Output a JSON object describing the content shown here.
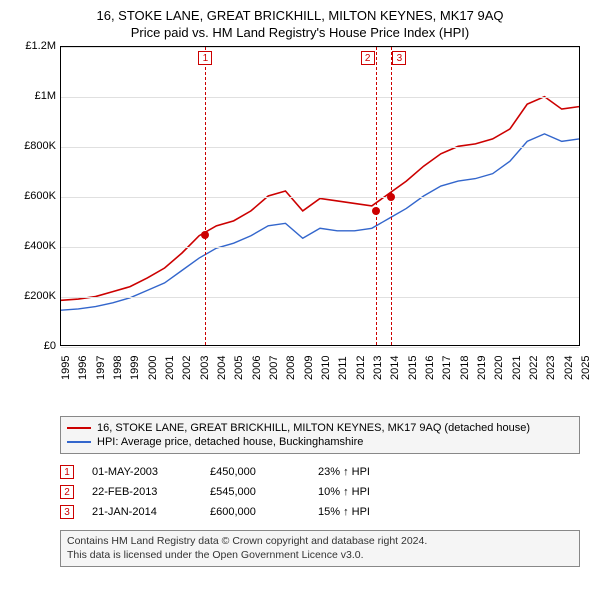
{
  "title": {
    "line1": "16, STOKE LANE, GREAT BRICKHILL, MILTON KEYNES, MK17 9AQ",
    "line2": "Price paid vs. HM Land Registry's House Price Index (HPI)"
  },
  "chart": {
    "type": "line",
    "background_color": "#ffffff",
    "grid_color": "#e0e0e0",
    "axis_color": "#000000",
    "x": {
      "min": 1995,
      "max": 2025,
      "ticks": [
        1995,
        1996,
        1997,
        1998,
        1999,
        2000,
        2001,
        2002,
        2003,
        2004,
        2005,
        2006,
        2007,
        2008,
        2009,
        2010,
        2011,
        2012,
        2013,
        2014,
        2015,
        2016,
        2017,
        2018,
        2019,
        2020,
        2021,
        2022,
        2023,
        2024,
        2025
      ],
      "tick_fontsize": 11,
      "tick_rotation": -90
    },
    "y": {
      "min": 0,
      "max": 1200000,
      "ticks": [
        0,
        200000,
        400000,
        600000,
        800000,
        1000000,
        1200000
      ],
      "tick_labels": [
        "£0",
        "£200K",
        "£400K",
        "£600K",
        "£800K",
        "£1M",
        "£1.2M"
      ],
      "tick_fontsize": 11
    },
    "series": [
      {
        "name": "property",
        "label": "16, STOKE LANE, GREAT BRICKHILL, MILTON KEYNES, MK17 9AQ (detached house)",
        "color": "#cc0000",
        "line_width": 1.6,
        "data": [
          [
            1995,
            180000
          ],
          [
            1996,
            185000
          ],
          [
            1997,
            195000
          ],
          [
            1998,
            215000
          ],
          [
            1999,
            235000
          ],
          [
            2000,
            270000
          ],
          [
            2001,
            310000
          ],
          [
            2002,
            370000
          ],
          [
            2003,
            440000
          ],
          [
            2004,
            480000
          ],
          [
            2005,
            500000
          ],
          [
            2006,
            540000
          ],
          [
            2007,
            600000
          ],
          [
            2008,
            620000
          ],
          [
            2009,
            540000
          ],
          [
            2010,
            590000
          ],
          [
            2011,
            580000
          ],
          [
            2012,
            570000
          ],
          [
            2013,
            560000
          ],
          [
            2014,
            610000
          ],
          [
            2015,
            660000
          ],
          [
            2016,
            720000
          ],
          [
            2017,
            770000
          ],
          [
            2018,
            800000
          ],
          [
            2019,
            810000
          ],
          [
            2020,
            830000
          ],
          [
            2021,
            870000
          ],
          [
            2022,
            970000
          ],
          [
            2023,
            1000000
          ],
          [
            2024,
            950000
          ],
          [
            2025,
            960000
          ]
        ]
      },
      {
        "name": "hpi",
        "label": "HPI: Average price, detached house, Buckinghamshire",
        "color": "#3366cc",
        "line_width": 1.4,
        "data": [
          [
            1995,
            140000
          ],
          [
            1996,
            145000
          ],
          [
            1997,
            155000
          ],
          [
            1998,
            170000
          ],
          [
            1999,
            190000
          ],
          [
            2000,
            220000
          ],
          [
            2001,
            250000
          ],
          [
            2002,
            300000
          ],
          [
            2003,
            350000
          ],
          [
            2004,
            390000
          ],
          [
            2005,
            410000
          ],
          [
            2006,
            440000
          ],
          [
            2007,
            480000
          ],
          [
            2008,
            490000
          ],
          [
            2009,
            430000
          ],
          [
            2010,
            470000
          ],
          [
            2011,
            460000
          ],
          [
            2012,
            460000
          ],
          [
            2013,
            470000
          ],
          [
            2014,
            510000
          ],
          [
            2015,
            550000
          ],
          [
            2016,
            600000
          ],
          [
            2017,
            640000
          ],
          [
            2018,
            660000
          ],
          [
            2019,
            670000
          ],
          [
            2020,
            690000
          ],
          [
            2021,
            740000
          ],
          [
            2022,
            820000
          ],
          [
            2023,
            850000
          ],
          [
            2024,
            820000
          ],
          [
            2025,
            830000
          ]
        ]
      }
    ],
    "event_lines": {
      "color": "#cc0000",
      "dash": "4,3",
      "marker_border": "#cc0000",
      "marker_fill": "#ffffff",
      "items": [
        {
          "n": "1",
          "x": 2003.33
        },
        {
          "n": "2",
          "x": 2013.15
        },
        {
          "n": "3",
          "x": 2014.06
        }
      ]
    },
    "sale_points": {
      "color": "#cc0000",
      "radius": 4,
      "items": [
        {
          "x": 2003.33,
          "y": 450000
        },
        {
          "x": 2013.15,
          "y": 545000
        },
        {
          "x": 2014.06,
          "y": 600000
        }
      ]
    }
  },
  "legend": {
    "border_color": "#888888",
    "background": "#f5f5f5",
    "fontsize": 11
  },
  "events_table": {
    "rows": [
      {
        "n": "1",
        "date": "01-MAY-2003",
        "price": "£450,000",
        "pct": "23% ↑ HPI"
      },
      {
        "n": "2",
        "date": "22-FEB-2013",
        "price": "£545,000",
        "pct": "10% ↑ HPI"
      },
      {
        "n": "3",
        "date": "21-JAN-2014",
        "price": "£600,000",
        "pct": "15% ↑ HPI"
      }
    ],
    "box_border": "#cc0000",
    "fontsize": 11
  },
  "footer": {
    "line1": "Contains HM Land Registry data © Crown copyright and database right 2024.",
    "line2": "This data is licensed under the Open Government Licence v3.0.",
    "border_color": "#888888",
    "background": "#f5f5f5",
    "fontsize": 10.5
  }
}
